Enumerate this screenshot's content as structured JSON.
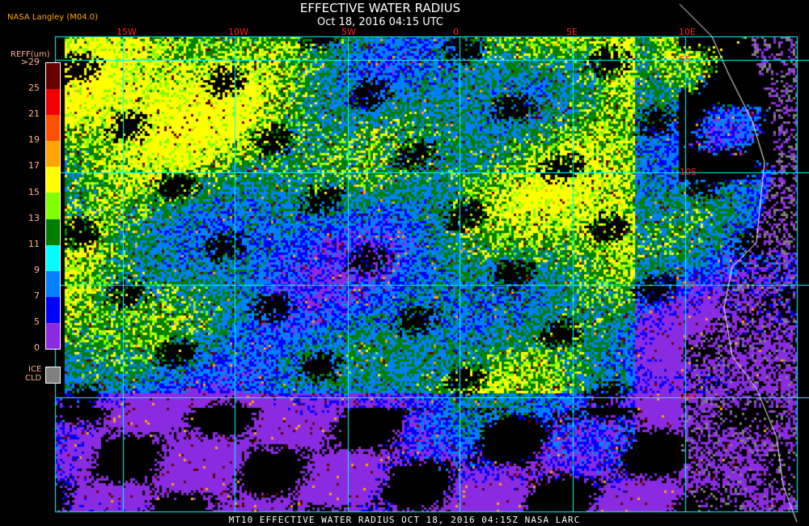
{
  "header": {
    "title": "EFFECTIVE WATER RADIUS",
    "subtitle": "Oct 18, 2016 04:15 UTC",
    "source": "NASA Langley (M04.0)"
  },
  "colorbar": {
    "title": "REFF(um)",
    "labels": [
      ">29",
      "25",
      "21",
      "19",
      "17",
      "15",
      "13",
      "11",
      "9",
      "7",
      "5",
      "0"
    ],
    "colors": [
      "#660000",
      "#f00000",
      "#ff5000",
      "#ffa500",
      "#ffff00",
      "#80ff00",
      "#008000",
      "#00ffff",
      "#0080ff",
      "#0000ff",
      "#8a2be2"
    ],
    "ice_label_1": "ICE",
    "ice_label_2": "CLD",
    "ice_color": "#808080"
  },
  "grid": {
    "longitudes": [
      "15W",
      "10W",
      "5W",
      "0",
      "5E",
      "10E"
    ],
    "latitudes": [
      "5S",
      "10S",
      "15S",
      "20S"
    ],
    "line_color": "#00ffff",
    "label_color": "#ff2020"
  },
  "footer": "MT10  EFFECTIVE WATER RADIUS  OCT 18, 2016 04:15Z  NASA LARC"
}
